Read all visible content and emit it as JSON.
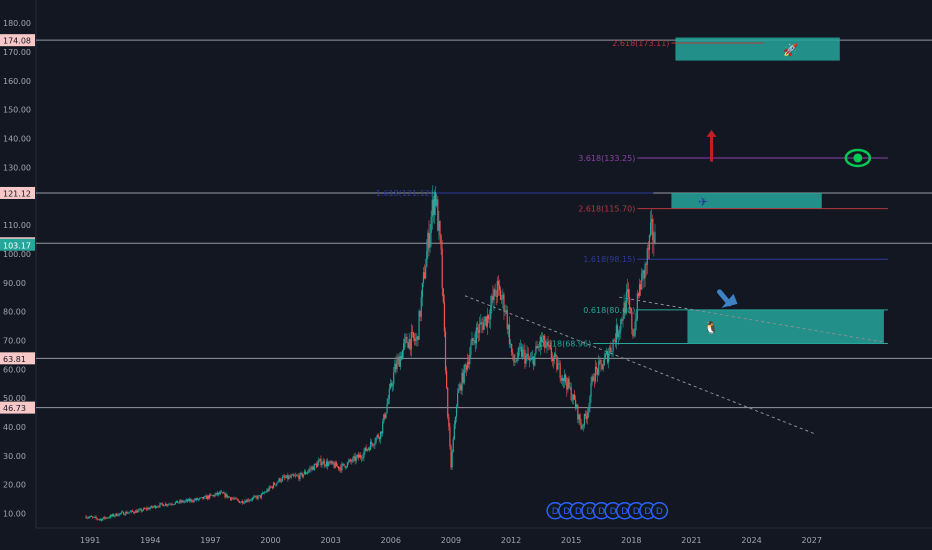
{
  "chart_data": {
    "type": "candlestick",
    "title": "",
    "xlabel": "",
    "ylabel": "",
    "ylim": [
      5,
      188
    ],
    "xlim": [
      1988.3,
      2033
    ],
    "y_ticks": [
      "10.00",
      "20.00",
      "30.00",
      "40.00",
      "50.00",
      "60.00",
      "70.00",
      "80.00",
      "90.00",
      "100.00",
      "110.00",
      "120.00",
      "130.00",
      "140.00",
      "150.00",
      "160.00",
      "170.00",
      "180.00"
    ],
    "y_tick_values": [
      10,
      20,
      30,
      40,
      50,
      60,
      70,
      80,
      90,
      100,
      110,
      120,
      130,
      140,
      150,
      160,
      170,
      180
    ],
    "x_ticks": [
      "1991",
      "1994",
      "1997",
      "2000",
      "2003",
      "2006",
      "2009",
      "2012",
      "2015",
      "2018",
      "2021",
      "2024",
      "2027"
    ],
    "x_tick_values": [
      1991,
      1994,
      1997,
      2000,
      2003,
      2006,
      2009,
      2012,
      2015,
      2018,
      2021,
      2024,
      2027
    ],
    "price_path": [
      [
        1990.8,
        9
      ],
      [
        1991.5,
        8
      ],
      [
        1992.5,
        10
      ],
      [
        1993.5,
        11
      ],
      [
        1994.5,
        13
      ],
      [
        1995.5,
        14
      ],
      [
        1996.5,
        15
      ],
      [
        1997.5,
        17
      ],
      [
        1998.5,
        14
      ],
      [
        1999.5,
        16
      ],
      [
        2000.5,
        22
      ],
      [
        2001.5,
        23
      ],
      [
        2002.5,
        28
      ],
      [
        2003.5,
        26
      ],
      [
        2004.5,
        30
      ],
      [
        2005.5,
        38
      ],
      [
        2006.2,
        60
      ],
      [
        2006.8,
        70
      ],
      [
        2007.3,
        70
      ],
      [
        2007.7,
        95
      ],
      [
        2008.0,
        112
      ],
      [
        2008.2,
        122
      ],
      [
        2008.5,
        100
      ],
      [
        2008.8,
        50
      ],
      [
        2009.0,
        26
      ],
      [
        2009.3,
        50
      ],
      [
        2009.7,
        60
      ],
      [
        2010.2,
        72
      ],
      [
        2010.8,
        78
      ],
      [
        2011.3,
        88
      ],
      [
        2011.7,
        82
      ],
      [
        2012.1,
        62
      ],
      [
        2012.5,
        66
      ],
      [
        2013.0,
        62
      ],
      [
        2013.5,
        70
      ],
      [
        2014.0,
        65
      ],
      [
        2014.4,
        60
      ],
      [
        2014.8,
        55
      ],
      [
        2015.2,
        48
      ],
      [
        2015.5,
        40
      ],
      [
        2015.8,
        45
      ],
      [
        2016.1,
        58
      ],
      [
        2016.6,
        62
      ],
      [
        2017.0,
        68
      ],
      [
        2017.4,
        75
      ],
      [
        2017.8,
        85
      ],
      [
        2018.1,
        72
      ],
      [
        2018.4,
        88
      ],
      [
        2018.7,
        95
      ],
      [
        2019.0,
        108
      ],
      [
        2019.2,
        104
      ]
    ],
    "horizontal_levels": [
      {
        "value": 174.08,
        "label": "174.08",
        "color": "#9598a1"
      },
      {
        "value": 121.12,
        "label": "121.12",
        "color": "#9598a1"
      },
      {
        "value": 103.68,
        "label": "103.68",
        "color": "#9598a1"
      },
      {
        "value": 63.81,
        "label": "63.81",
        "color": "#9598a1"
      },
      {
        "value": 46.73,
        "label": "46.73",
        "color": "#9598a1"
      }
    ],
    "last_price": {
      "value": 103.17,
      "label": "103.17",
      "color": "#26a69a"
    },
    "fib_levels": [
      {
        "value": 173.11,
        "label": "2.618(173.11)",
        "color": "#b2373c",
        "x_from": 2020.0,
        "x_to": 2024.6
      },
      {
        "value": 133.25,
        "label": "3.618(133.25)",
        "color": "#8e3fa8",
        "x_from": 2018.3,
        "x_to": 2030.8
      },
      {
        "value": 121.12,
        "label": "1.618(121.12)",
        "color": "#2e3a9a",
        "x_from": 2008.2,
        "x_to": 2019.1
      },
      {
        "value": 115.7,
        "label": "2.618(115.70)",
        "color": "#b2373c",
        "x_from": 2018.3,
        "x_to": 2030.8
      },
      {
        "value": 98.15,
        "label": "1.618(98.15)",
        "color": "#2e3a9a",
        "x_from": 2018.3,
        "x_to": 2030.8
      },
      {
        "value": 80.6,
        "label": "0.618(80.60)",
        "color": "#26a69a",
        "x_from": 2018.3,
        "x_to": 2030.8
      },
      {
        "value": 68.96,
        "label": "0.618(68.96)",
        "color": "#26a69a",
        "x_from": 2016.1,
        "x_to": 2030.8
      }
    ],
    "boxes": [
      {
        "x0": 2020.2,
        "x1": 2028.4,
        "y0": 167,
        "y1": 175,
        "icon": "rocket-icon",
        "icon_glyph": "🚀",
        "color": "#26a69a"
      },
      {
        "x0": 2020.0,
        "x1": 2027.5,
        "y0": 115.7,
        "y1": 121.12,
        "icon": "airplane-icon",
        "icon_glyph": "✈",
        "color": "#26a69a"
      },
      {
        "x0": 2020.8,
        "x1": 2030.6,
        "y0": 68.96,
        "y1": 80.6,
        "icon": "penguin-icon",
        "icon_glyph": "🐧",
        "color": "#26a69a"
      }
    ],
    "trendlines": [
      {
        "from": [
          2009.7,
          85.5
        ],
        "to": [
          2027.2,
          37.5
        ],
        "color": "#8a8d94"
      },
      {
        "from": [
          2017.4,
          85
        ],
        "to": [
          2030.5,
          69.5
        ],
        "color": "#8a8d94"
      }
    ],
    "up_arrow": {
      "x": 2022.0,
      "y_from": 132,
      "y_to": 143,
      "color": "#c01f26"
    },
    "eye_marker": {
      "x": 2029.3,
      "y": 133.25,
      "color": "#00c853",
      "icon": "eye-icon"
    },
    "pointer_marker": {
      "x": 2022.8,
      "y": 82,
      "color": "#3d82c4",
      "icon": "pointer-arrow-icon"
    },
    "dividend_markers": {
      "count": 10,
      "glyph": "D",
      "x_from": 2014.2,
      "x_to": 2019.4,
      "y": 11,
      "color": "#2962ff"
    }
  }
}
